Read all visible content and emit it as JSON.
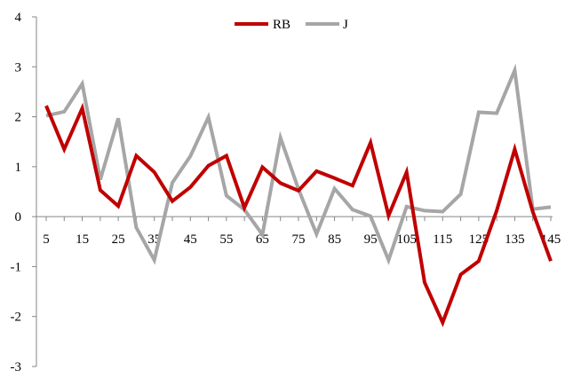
{
  "chart_data": {
    "type": "line",
    "title": "",
    "xlabel": "",
    "ylabel": "",
    "x": [
      5,
      10,
      15,
      20,
      25,
      30,
      35,
      40,
      45,
      50,
      55,
      60,
      65,
      70,
      75,
      80,
      85,
      90,
      95,
      100,
      105,
      110,
      115,
      120,
      125,
      130,
      135,
      140,
      145
    ],
    "x_tick_labels": [
      "5",
      "15",
      "25",
      "35",
      "45",
      "55",
      "65",
      "75",
      "85",
      "95",
      "105",
      "115",
      "125",
      "135",
      "145"
    ],
    "y_tick_labels": [
      "4",
      "3",
      "2",
      "1",
      "0",
      "-1",
      "-2",
      "-3"
    ],
    "ylim": [
      -3,
      4
    ],
    "grid": false,
    "legend_position": "top-center",
    "series": [
      {
        "name": "RB",
        "color": "#c00000",
        "values": [
          2.22,
          1.35,
          2.17,
          0.53,
          0.21,
          1.22,
          0.89,
          0.31,
          0.59,
          1.02,
          1.22,
          0.18,
          0.99,
          0.67,
          0.52,
          0.91,
          0.77,
          0.62,
          1.48,
          0.02,
          0.89,
          -1.32,
          -2.12,
          -1.16,
          -0.89,
          0.12,
          1.35,
          0.1,
          -0.89
        ]
      },
      {
        "name": "J",
        "color": "#a6a6a6",
        "values": [
          2.02,
          2.1,
          2.66,
          0.74,
          1.97,
          -0.22,
          -0.87,
          0.68,
          1.21,
          1.99,
          0.42,
          0.14,
          -0.36,
          1.58,
          0.55,
          -0.35,
          0.56,
          0.14,
          0.01,
          -0.87,
          0.2,
          0.12,
          0.1,
          0.45,
          2.09,
          2.07,
          2.93,
          0.15,
          0.19
        ]
      }
    ]
  }
}
